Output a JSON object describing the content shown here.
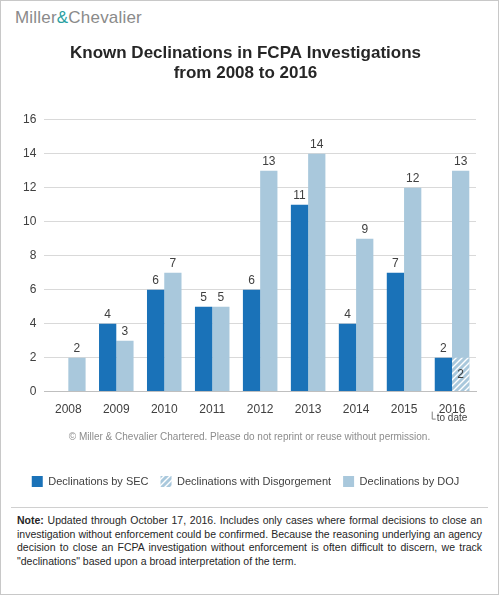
{
  "header": "Miller&Chevalier",
  "copyright": "© Miller & Chevalier Chartered. Please do not reprint or reuse without permission.",
  "note_label": "Note:",
  "note": "Updated through October 17, 2016. Includes only cases where formal decisions to close an investigation without enforcement could be confirmed. Because the reasoning underlying an agency decision to close an FCPA investigation without enforcement is often difficult to discern, we track \"declinations\" based upon a broad interpretation of the term.",
  "chart_data": {
    "type": "bar",
    "title": [
      "Known Declinations in FCPA Investigations",
      "from 2008 to 2016"
    ],
    "categories": [
      "2008",
      "2009",
      "2010",
      "2011",
      "2012",
      "2013",
      "2014",
      "2015",
      "2016"
    ],
    "series": [
      {
        "name": "Declinations by SEC",
        "color": "#1a72b8",
        "values": [
          null,
          4,
          6,
          5,
          6,
          11,
          4,
          7,
          2
        ]
      },
      {
        "name": "Declinations by DOJ",
        "color": "#a9c8dc",
        "values": [
          2,
          3,
          7,
          5,
          13,
          14,
          9,
          12,
          13
        ]
      },
      {
        "name": "Declinations with Disgorgement",
        "color": "#a9c8dc",
        "values": [
          null,
          null,
          null,
          null,
          null,
          null,
          null,
          null,
          2
        ]
      }
    ],
    "ylim": [
      0,
      16
    ],
    "yticks": [
      0,
      2,
      4,
      6,
      8,
      10,
      12,
      14,
      16
    ],
    "grid": true,
    "legend": "bottom",
    "data_labels": true,
    "annotations": [
      {
        "category": "2016",
        "text": "to date"
      }
    ]
  }
}
